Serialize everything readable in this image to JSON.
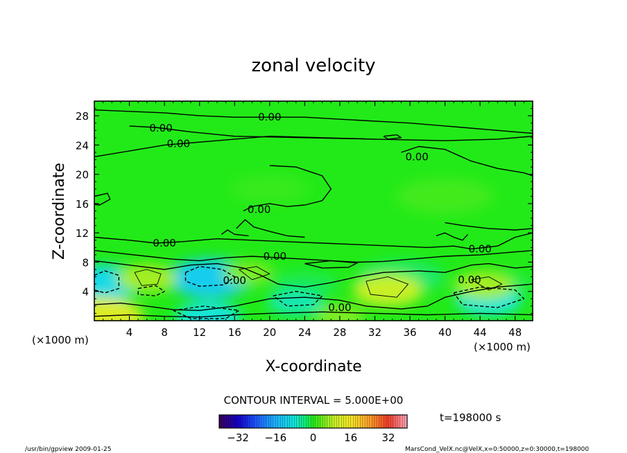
{
  "chart_data": {
    "type": "heatmap",
    "title": "zonal velocity",
    "xlabel": "X-coordinate",
    "ylabel": "Z-coordinate",
    "x_unit": "(×1000 m)",
    "y_unit": "(×1000 m)",
    "xlim": [
      0,
      50
    ],
    "ylim": [
      0,
      30
    ],
    "x_ticks": [
      4,
      8,
      12,
      16,
      20,
      24,
      28,
      32,
      36,
      40,
      44,
      48
    ],
    "y_ticks": [
      4,
      8,
      12,
      16,
      20,
      24,
      28
    ],
    "contour_interval": "CONTOUR INTERVAL = 5.000E+00",
    "contour_labels": [
      {
        "text": "0.00",
        "x": 20.0,
        "z": 27.8
      },
      {
        "text": "0.00",
        "x": 7.6,
        "z": 26.3
      },
      {
        "text": "0.00",
        "x": 9.6,
        "z": 24.2
      },
      {
        "text": "0.00",
        "x": 36.8,
        "z": 22.4
      },
      {
        "text": "0.00",
        "x": 18.8,
        "z": 15.2
      },
      {
        "text": "0.00",
        "x": 8.0,
        "z": 10.6
      },
      {
        "text": "0.00",
        "x": 20.6,
        "z": 8.8
      },
      {
        "text": "0.00",
        "x": 44.0,
        "z": 9.8
      },
      {
        "text": "0.00",
        "x": 16.0,
        "z": 5.5
      },
      {
        "text": "0.00",
        "x": 42.8,
        "z": 5.6
      },
      {
        "text": "0.00",
        "x": 28.0,
        "z": 1.8
      }
    ],
    "field_features": [
      {
        "sign": "negative",
        "x": 1.2,
        "z": 5.2,
        "value": -10
      },
      {
        "sign": "negative",
        "x": 13.2,
        "z": 5.8,
        "value": -12
      },
      {
        "sign": "negative",
        "x": 23.0,
        "z": 2.5,
        "value": -6
      },
      {
        "sign": "negative",
        "x": 45.0,
        "z": 2.8,
        "value": -8
      },
      {
        "sign": "negative",
        "x": 13.0,
        "z": 0.5,
        "value": -8
      },
      {
        "sign": "positive",
        "x": 6.0,
        "z": 5.8,
        "value": 7
      },
      {
        "sign": "positive",
        "x": 17.5,
        "z": 6.5,
        "value": 5
      },
      {
        "sign": "positive",
        "x": 33.5,
        "z": 4.2,
        "value": 9
      },
      {
        "sign": "positive",
        "x": 44.5,
        "z": 4.8,
        "value": 7
      },
      {
        "sign": "positive",
        "x": 0.8,
        "z": 0.5,
        "value": 12
      },
      {
        "sign": "positive",
        "x": 28.0,
        "z": 0.6,
        "value": 5
      }
    ],
    "colorbar": {
      "min": -40,
      "max": 40,
      "tick_labels": [
        "−32",
        "−16",
        "0",
        "16",
        "32"
      ],
      "tick_values": [
        -32,
        -16,
        0,
        16,
        32
      ]
    },
    "time_label": "t=198000 s"
  },
  "footer": {
    "left": "/usr/bin/gpview  2009-01-25",
    "right": "MarsCond_VelX.nc@VelX,x=0:50000,z=0:30000,t=198000"
  }
}
